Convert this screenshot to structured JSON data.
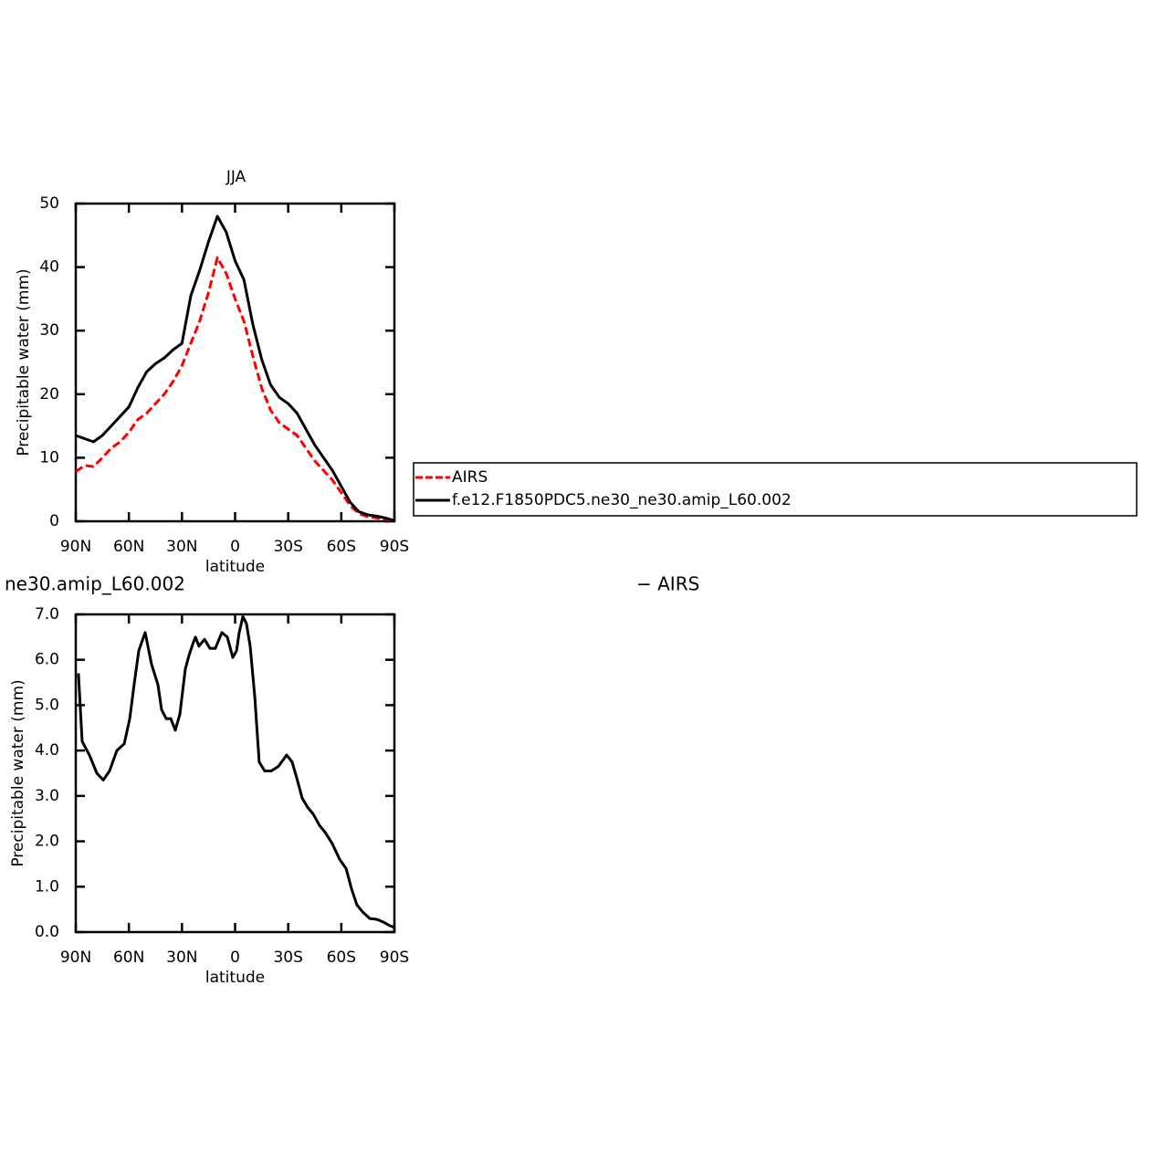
{
  "chart_data": [
    {
      "type": "line",
      "title": "JJA",
      "xlabel": "latitude",
      "ylabel": "Precipitable water (mm)",
      "xlim": [
        90,
        -90
      ],
      "ylim": [
        0,
        50
      ],
      "xticks": [
        {
          "value": 90,
          "label": "90N"
        },
        {
          "value": 60,
          "label": "60N"
        },
        {
          "value": 30,
          "label": "30N"
        },
        0,
        {
          "value": -30,
          "label": "30S"
        },
        {
          "value": -60,
          "label": "60S"
        },
        {
          "value": -90,
          "label": "90S"
        }
      ],
      "yticks": [
        0,
        10,
        20,
        30,
        40,
        50
      ],
      "legend": "outside-right",
      "x": [
        90,
        85,
        80,
        75,
        70,
        65,
        60,
        55,
        50,
        45,
        40,
        35,
        30,
        25,
        20,
        15,
        10,
        5,
        0,
        -5,
        -10,
        -15,
        -20,
        -25,
        -30,
        -35,
        -40,
        -45,
        -50,
        -55,
        -60,
        -65,
        -70,
        -75,
        -80,
        -85,
        -90
      ],
      "series": [
        {
          "name": "AIRS",
          "color": "#ff0000",
          "linestyle": "dashed",
          "values": [
            7.8,
            8.8,
            8.6,
            10,
            11.5,
            12.5,
            14,
            16,
            17,
            18.5,
            20,
            22,
            24.5,
            28,
            31.5,
            36,
            41.5,
            39,
            35,
            31.5,
            26,
            21,
            17.5,
            15.5,
            14.5,
            13.5,
            11.5,
            9.5,
            8,
            6.5,
            4.5,
            2.5,
            1.2,
            0.7,
            0.5,
            0.3,
            0.1
          ]
        },
        {
          "name": "f.e12.F1850PDC5.ne30_ne30.amip_L60.002",
          "color": "#000000",
          "linestyle": "solid",
          "values": [
            13.5,
            13,
            12.5,
            13.5,
            15,
            16.5,
            18,
            21,
            23.5,
            24.8,
            25.7,
            27,
            28,
            35.5,
            39.5,
            44,
            48,
            45.5,
            41,
            38,
            31,
            25.5,
            21.5,
            19.5,
            18.5,
            17,
            14.5,
            12,
            10,
            8,
            5.5,
            3,
            1.5,
            1,
            0.8,
            0.5,
            0.1
          ]
        }
      ]
    },
    {
      "type": "line",
      "title": "ne30.amip_L60.002",
      "subtitle": "− AIRS",
      "xlabel": "latitude",
      "ylabel": "Precipitable water (mm)",
      "xlim": [
        90,
        -90
      ],
      "ylim": [
        0,
        7
      ],
      "xticks": [
        {
          "value": 90,
          "label": "90N"
        },
        {
          "value": 60,
          "label": "60N"
        },
        {
          "value": 30,
          "label": "30N"
        },
        0,
        {
          "value": -30,
          "label": "30S"
        },
        {
          "value": -60,
          "label": "60S"
        },
        {
          "value": -90,
          "label": "90S"
        }
      ],
      "yticks": [
        {
          "value": 0,
          "label": "0.0"
        },
        {
          "value": 1,
          "label": "1.0"
        },
        {
          "value": 2,
          "label": "2.0"
        },
        {
          "value": 3,
          "label": "3.0"
        },
        {
          "value": 4,
          "label": "4.0"
        },
        {
          "value": 5,
          "label": "5.0"
        },
        {
          "value": 6,
          "label": "6.0"
        },
        {
          "value": 7,
          "label": "7.0"
        }
      ],
      "color": "#000000",
      "x": [
        88.5,
        86.4,
        82.3,
        78.1,
        74.5,
        70.9,
        66.8,
        62.6,
        59.5,
        56.9,
        54.4,
        50.8,
        47.2,
        43.6,
        41.5,
        38.9,
        36.3,
        33.8,
        31.2,
        28.1,
        26.0,
        23.4,
        22.4,
        20.4,
        17.3,
        14.2,
        11.2,
        7.5,
        4.4,
        1.3,
        -0.8,
        -2.3,
        -4.4,
        -6.4,
        -8.5,
        -11.1,
        -13.6,
        -16.7,
        -20.4,
        -24.5,
        -29.1,
        -32.2,
        -34.8,
        -37.9,
        -41.0,
        -44.1,
        -47.7,
        -50.8,
        -54.9,
        -59.1,
        -62.7,
        -65.8,
        -68.8,
        -71.9,
        -76.1,
        -80.2,
        -83.8,
        -86.9,
        -90
      ],
      "values": [
        5.7,
        4.2,
        3.9,
        3.5,
        3.35,
        3.55,
        4.0,
        4.15,
        4.7,
        5.5,
        6.2,
        6.6,
        5.9,
        5.45,
        4.9,
        4.7,
        4.7,
        4.45,
        4.8,
        5.8,
        6.1,
        6.4,
        6.5,
        6.3,
        6.45,
        6.25,
        6.25,
        6.6,
        6.5,
        6.05,
        6.2,
        6.6,
        6.95,
        6.8,
        6.3,
        5.2,
        3.75,
        3.55,
        3.55,
        3.65,
        3.9,
        3.75,
        3.4,
        2.95,
        2.75,
        2.6,
        2.35,
        2.2,
        1.95,
        1.6,
        1.4,
        0.95,
        0.6,
        0.45,
        0.3,
        0.28,
        0.22,
        0.15,
        0.1
      ]
    }
  ]
}
